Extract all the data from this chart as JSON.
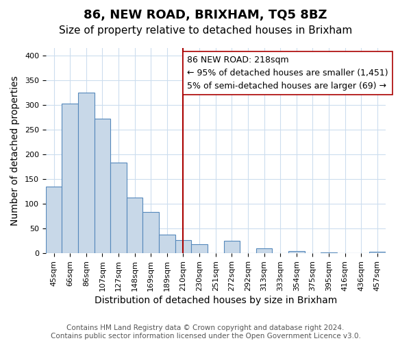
{
  "title": "86, NEW ROAD, BRIXHAM, TQ5 8BZ",
  "subtitle": "Size of property relative to detached houses in Brixham",
  "xlabel": "Distribution of detached houses by size in Brixham",
  "ylabel": "Number of detached properties",
  "bar_labels": [
    "45sqm",
    "66sqm",
    "86sqm",
    "107sqm",
    "127sqm",
    "148sqm",
    "169sqm",
    "189sqm",
    "210sqm",
    "230sqm",
    "251sqm",
    "272sqm",
    "292sqm",
    "313sqm",
    "333sqm",
    "354sqm",
    "375sqm",
    "395sqm",
    "416sqm",
    "436sqm",
    "457sqm"
  ],
  "bar_heights": [
    135,
    302,
    325,
    272,
    183,
    113,
    83,
    38,
    27,
    18,
    0,
    25,
    0,
    10,
    0,
    5,
    0,
    2,
    0,
    0,
    3
  ],
  "bar_color": "#c8d8e8",
  "bar_edge_color": "#5588bb",
  "vline_x": 8,
  "vline_color": "#aa0000",
  "annotation_line1": "86 NEW ROAD: 218sqm",
  "annotation_line2": "← 95% of detached houses are smaller (1,451)",
  "annotation_line3": "5% of semi-detached houses are larger (69) →",
  "annotation_box_color": "#ffffff",
  "annotation_box_edge_color": "#aa0000",
  "ylim": [
    0,
    415
  ],
  "yticks": [
    0,
    50,
    100,
    150,
    200,
    250,
    300,
    350,
    400
  ],
  "footnote": "Contains HM Land Registry data © Crown copyright and database right 2024.\nContains public sector information licensed under the Open Government Licence v3.0.",
  "background_color": "#ffffff",
  "grid_color": "#ccddee",
  "title_fontsize": 13,
  "subtitle_fontsize": 11,
  "axis_label_fontsize": 10,
  "tick_fontsize": 8,
  "annotation_fontsize": 9,
  "footnote_fontsize": 7.5
}
